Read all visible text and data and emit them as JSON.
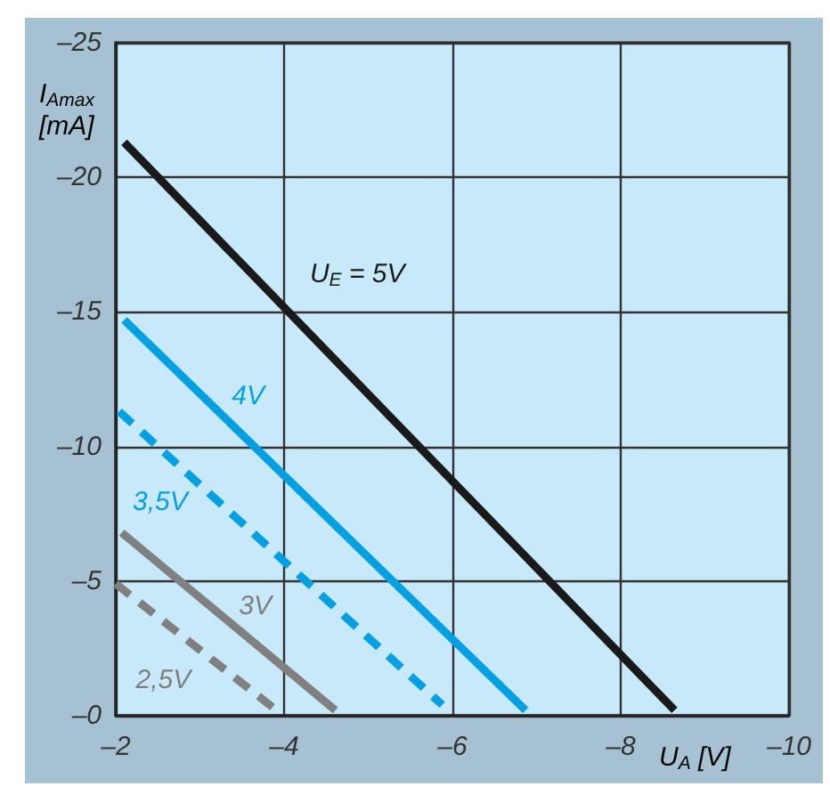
{
  "chart_data": {
    "type": "line",
    "xlabel": "U$_{A}$ [V]",
    "ylabel": "I$_{Amax}$ [mA]",
    "xlim": [
      -2,
      -10
    ],
    "xticks": [
      {
        "value": -2,
        "label": "–2"
      },
      {
        "value": -4,
        "label": "–4"
      },
      {
        "value": -6,
        "label": "–6"
      },
      {
        "value": -8,
        "label": "–8"
      },
      {
        "value": -10,
        "label": "–10"
      }
    ],
    "ylim": [
      0,
      -25
    ],
    "yticks": [
      {
        "value": 0,
        "label": "–0"
      },
      {
        "value": -5,
        "label": "–5"
      },
      {
        "value": -10,
        "label": "–10"
      },
      {
        "value": -15,
        "label": "–15"
      },
      {
        "value": -20,
        "label": "–20"
      },
      {
        "value": -25,
        "label": "–25"
      }
    ],
    "grid": true,
    "marker": "none",
    "series": [
      {
        "name": "U$_{E}$ = 5V",
        "color": "#1a1a1a",
        "line_style": "solid",
        "x": [
          -2.1,
          -8.64
        ],
        "values": [
          -21.3,
          -0.2
        ]
      },
      {
        "name": "4V",
        "color": "#00a0e3",
        "line_style": "solid",
        "x": [
          -2.1,
          -6.87
        ],
        "values": [
          -14.7,
          -0.2
        ]
      },
      {
        "name": "3,5V",
        "color": "#00a0e3",
        "line_style": "dashed",
        "x": [
          -2.04,
          -5.88
        ],
        "values": [
          -11.3,
          -0.4
        ]
      },
      {
        "name": "3V",
        "color": "#808080",
        "line_style": "solid",
        "x": [
          -2.07,
          -4.61
        ],
        "values": [
          -6.8,
          -0.2
        ]
      },
      {
        "name": "2,5V",
        "color": "#808080",
        "line_style": "dashed",
        "x": [
          -2.0,
          -3.95
        ],
        "values": [
          -4.9,
          -0.1
        ]
      }
    ]
  }
}
